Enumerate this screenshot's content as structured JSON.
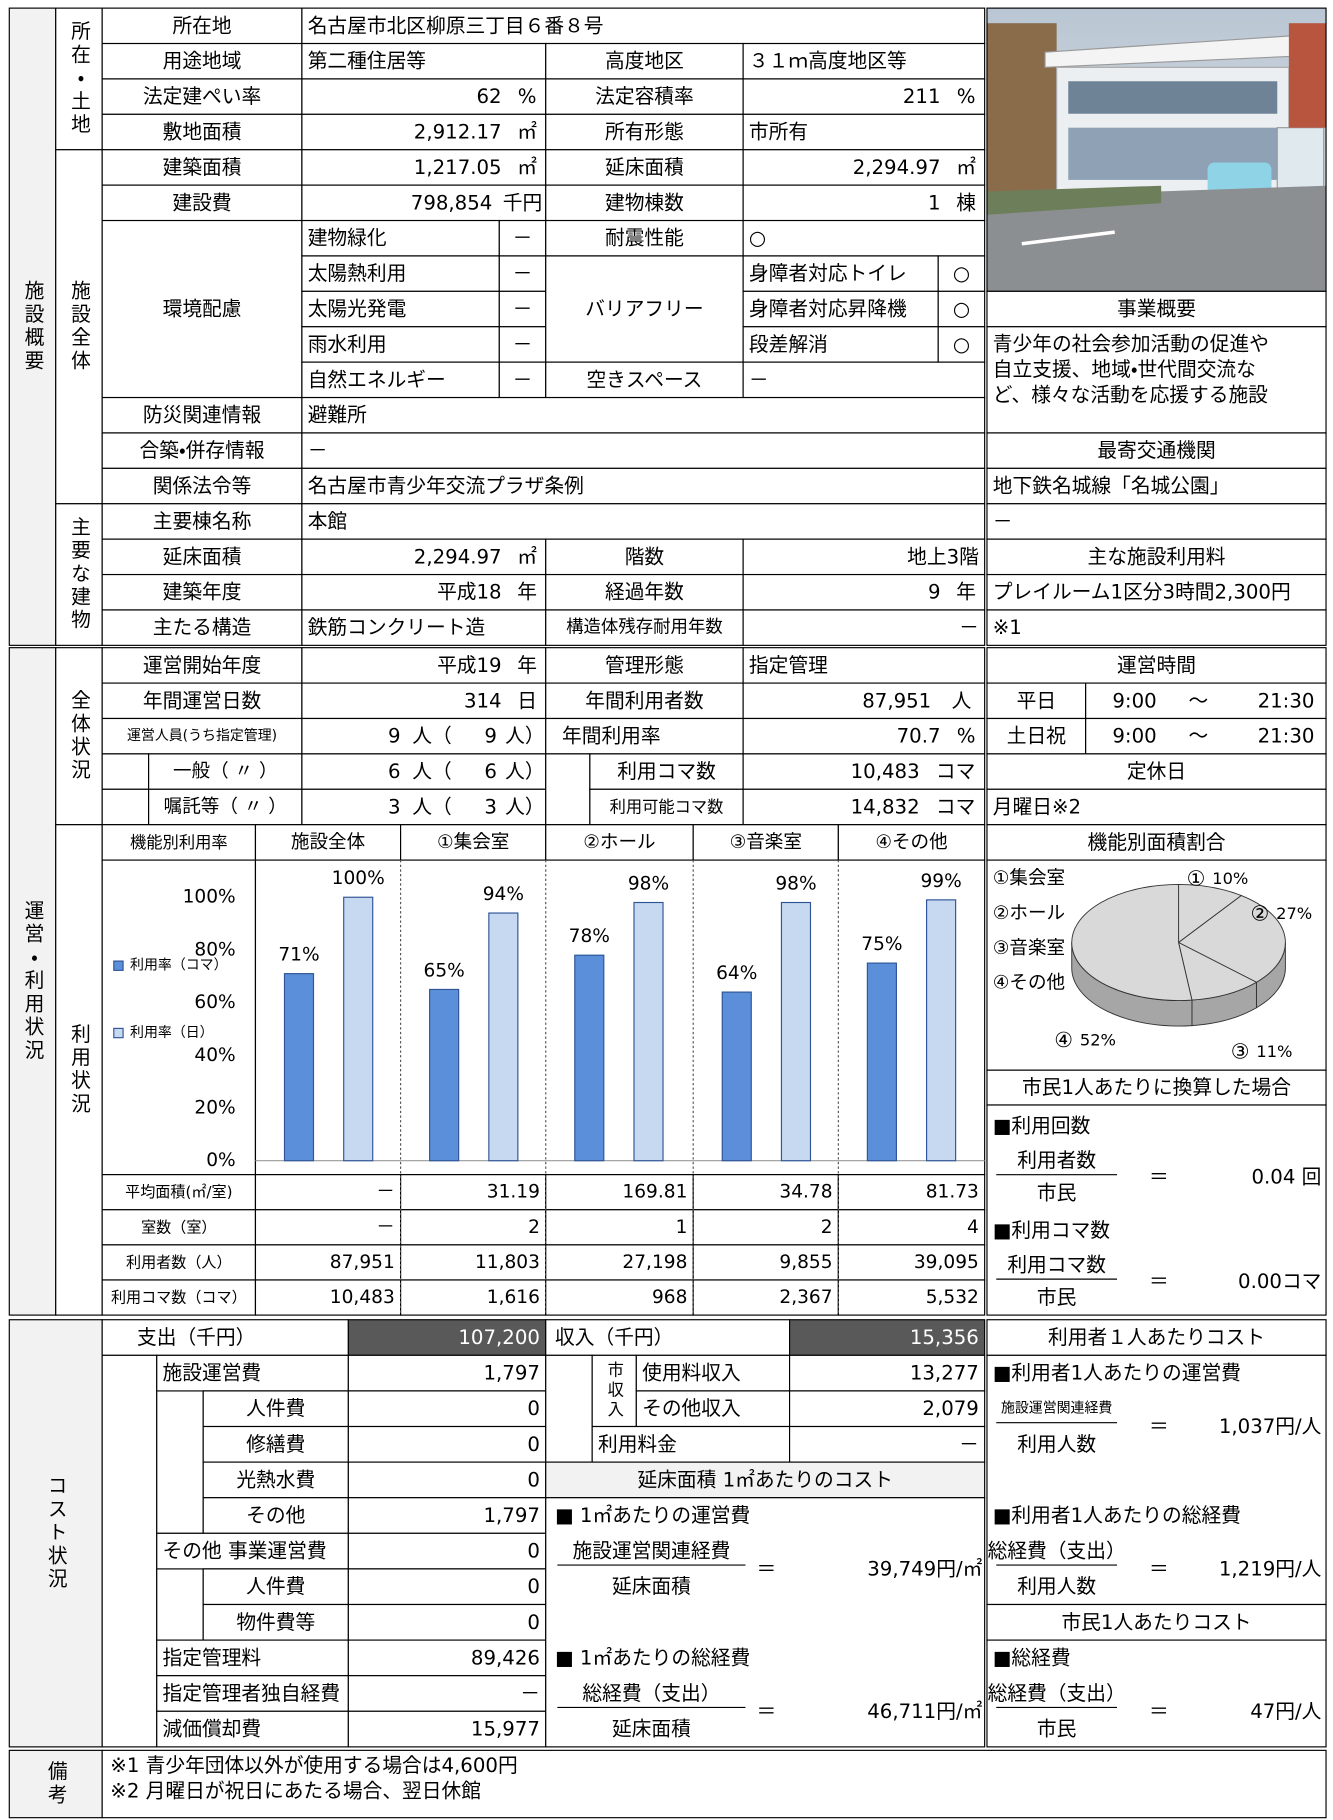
{
  "facility": {
    "section": "施設概要",
    "location_group": "所在・土地",
    "building_group": "施設全体",
    "main_group": "主要な建物",
    "address": {
      "label": "所在地",
      "value": "名古屋市北区柳原三丁目６番８号"
    },
    "zoning": {
      "label": "用途地域",
      "value": "第二種住居等"
    },
    "height_district": {
      "label": "高度地区",
      "value": "３１ｍ高度地区等"
    },
    "coverage_ratio": {
      "label": "法定建ぺい率",
      "value": "62",
      "unit": "%"
    },
    "floor_area_ratio": {
      "label": "法定容積率",
      "value": "211",
      "unit": "%"
    },
    "site_area": {
      "label": "敷地面積",
      "value": "2,912.17",
      "unit": "㎡"
    },
    "ownership": {
      "label": "所有形態",
      "value": "市所有"
    },
    "building_area": {
      "label": "建築面積",
      "value": "1,217.05",
      "unit": "㎡"
    },
    "total_floor_area": {
      "label": "延床面積",
      "value": "2,294.97",
      "unit": "㎡"
    },
    "construction_cost": {
      "label": "建設費",
      "value": "798,854",
      "unit": "千円"
    },
    "building_count": {
      "label": "建物棟数",
      "value": "1",
      "unit": "棟"
    },
    "environment": {
      "label": "環境配慮",
      "items": [
        {
          "name": "建物緑化",
          "mark": "－"
        },
        {
          "name": "太陽熱利用",
          "mark": "－"
        },
        {
          "name": "太陽光発電",
          "mark": "－"
        },
        {
          "name": "雨水利用",
          "mark": "－"
        },
        {
          "name": "自然エネルギー",
          "mark": "－"
        }
      ]
    },
    "seismic": {
      "label": "耐震性能",
      "value": "○"
    },
    "barrier_free": {
      "label": "バリアフリー",
      "items": [
        {
          "name": "身障者対応トイレ",
          "mark": "○"
        },
        {
          "name": "身障者対応昇降機",
          "mark": "○"
        },
        {
          "name": "段差解消",
          "mark": "○"
        }
      ]
    },
    "vacant_space": {
      "label": "空きスペース",
      "value": "－"
    },
    "disaster": {
      "label": "防災関連情報",
      "value": "避難所"
    },
    "combined": {
      "label": "合築・併存情報",
      "value": "－"
    },
    "laws": {
      "label": "関係法令等",
      "value": "名古屋市青少年交流プラザ条例"
    },
    "main_building": {
      "name": {
        "label": "主要棟名称",
        "value": "本館"
      },
      "floor_area": {
        "label": "延床面積",
        "value": "2,294.97",
        "unit": "㎡"
      },
      "floors": {
        "label": "階数",
        "value": "地上3階"
      },
      "year_built": {
        "label": "建築年度",
        "value": "平成18",
        "unit": "年"
      },
      "age": {
        "label": "経過年数",
        "value": "9",
        "unit": "年"
      },
      "structure": {
        "label": "主たる構造",
        "value": "鉄筋コンクリート造"
      },
      "remaining_life": {
        "label": "構造体残存耐用年数",
        "value": "－"
      }
    },
    "business": {
      "title": "事業概要",
      "lines": [
        "青少年の社会参加活動の促進や",
        "自立支援、地域・世代間交流な",
        "ど、様々な活動を応援する施設"
      ]
    },
    "transport": {
      "title": "最寄交通機関",
      "lines": [
        "地下鉄名城線「名城公園」",
        "－"
      ]
    },
    "fees": {
      "title": "主な施設利用料",
      "lines": [
        "プレイルーム1区分3時間2,300円",
        "※1"
      ]
    }
  },
  "operation": {
    "section": "運営・利用状況",
    "overall_group": "全体状況",
    "usage_group": "利用状況",
    "start_year": {
      "label": "運営開始年度",
      "value": "平成19",
      "unit": "年"
    },
    "management": {
      "label": "管理形態",
      "value": "指定管理"
    },
    "operating_days": {
      "label": "年間運営日数",
      "value": "314",
      "unit": "日"
    },
    "annual_users": {
      "label": "年間利用者数",
      "value": "87,951",
      "unit": "人"
    },
    "staff": [
      {
        "label": "運営人員(うち指定管理)",
        "total": "9",
        "designated": "9"
      },
      {
        "label": "一般（ 〃 ）",
        "total": "6",
        "designated": "6"
      },
      {
        "label": "嘱託等（ 〃 ）",
        "total": "3",
        "designated": "3"
      }
    ],
    "staff_unit_open": "人（",
    "staff_unit_close": "人）",
    "usage_rate": {
      "label": "年間利用率",
      "value": "70.7",
      "unit": "%"
    },
    "slots_used": {
      "label": "利用コマ数",
      "value": "10,483",
      "unit": "コマ"
    },
    "slots_available": {
      "label": "利用可能コマ数",
      "value": "14,832",
      "unit": "コマ"
    },
    "hours": {
      "title": "運営時間",
      "rows": [
        {
          "day": "平日",
          "open": "9:00",
          "sep": "～",
          "close": "21:30"
        },
        {
          "day": "土日祝",
          "open": "9:00",
          "sep": "～",
          "close": "21:30"
        }
      ]
    },
    "holiday": {
      "title": "定休日",
      "value": "月曜日※2"
    }
  },
  "usage": {
    "header": "機能別利用率",
    "chart_data": {
      "type": "bar",
      "categories": [
        "施設全体",
        "①集会室",
        "②ホール",
        "③音楽室",
        "④その他"
      ],
      "ylim": [
        0,
        100
      ],
      "yticks": [
        {
          "value": 0,
          "label": "0%"
        },
        {
          "value": 20,
          "label": "20%"
        },
        {
          "value": 40,
          "label": "40%"
        },
        {
          "value": 60,
          "label": "60%"
        },
        {
          "value": 80,
          "label": "80%"
        },
        {
          "value": 100,
          "label": "100%"
        }
      ],
      "series": [
        {
          "name": "利用率（コマ）",
          "color": "#5b8fd9",
          "values": [
            71,
            65,
            78,
            64,
            75
          ],
          "value_labels": [
            "71%",
            "65%",
            "78%",
            "64%",
            "75%"
          ]
        },
        {
          "name": "利用率（日）",
          "color": "#c6d9f1",
          "values": [
            100,
            94,
            98,
            98,
            99
          ],
          "value_labels": [
            "100%",
            "94%",
            "98%",
            "98%",
            "99%"
          ]
        }
      ]
    },
    "rows": [
      {
        "label": "平均面積(㎡/室)",
        "values": [
          "－",
          "31.19",
          "169.81",
          "34.78",
          "81.73"
        ]
      },
      {
        "label": "室数（室）",
        "values": [
          "－",
          "2",
          "1",
          "2",
          "4"
        ]
      },
      {
        "label": "利用者数（人）",
        "values": [
          "87,951",
          "11,803",
          "27,198",
          "9,855",
          "39,095"
        ]
      },
      {
        "label": "利用コマ数（コマ）",
        "values": [
          "10,483",
          "1,616",
          "968",
          "2,367",
          "5,532"
        ]
      }
    ]
  },
  "area_share": {
    "title": "機能別面積割合",
    "chart_data": {
      "type": "pie",
      "categories": [
        "①集会室",
        "②ホール",
        "③音楽室",
        "④その他"
      ],
      "markers": [
        "①",
        "②",
        "③",
        "④"
      ],
      "values": [
        10,
        27,
        11,
        52
      ],
      "value_labels": [
        "10%",
        "27%",
        "11%",
        "52%"
      ],
      "color": "#d9d9d9"
    }
  },
  "per_citizen_usage": {
    "title": "市民1人あたりに換算した場合",
    "items": [
      {
        "heading": "■利用回数",
        "numerator": "利用者数",
        "denominator": "市民",
        "value": "0.04 回"
      },
      {
        "heading": "■利用コマ数",
        "numerator": "利用コマ数",
        "denominator": "市民",
        "value": "0.00コマ"
      }
    ]
  },
  "equals": "＝",
  "cost": {
    "section": "コスト状況",
    "expenses": {
      "label": "支出（千円）",
      "total": "107,200",
      "items": [
        {
          "label": "施設運営費",
          "value": "1,797"
        },
        {
          "label": "人件費",
          "value": "0"
        },
        {
          "label": "修繕費",
          "value": "0"
        },
        {
          "label": "光熱水費",
          "value": "0"
        },
        {
          "label": "その他",
          "value": "1,797"
        },
        {
          "label": "その他 事業運営費",
          "value": "0"
        },
        {
          "label": "人件費",
          "value": "0"
        },
        {
          "label": "物件費等",
          "value": "0"
        },
        {
          "label": "指定管理料",
          "value": "89,426"
        },
        {
          "label": "指定管理者独自経費",
          "value": "－"
        },
        {
          "label": "減価償却費",
          "value": "15,977"
        }
      ]
    },
    "revenue": {
      "label": "収入（千円）",
      "total": "15,356",
      "city_label": "市収入",
      "items": [
        {
          "label": "使用料収入",
          "value": "13,277"
        },
        {
          "label": "その他収入",
          "value": "2,079"
        },
        {
          "label": "利用料金",
          "value": "－"
        }
      ]
    },
    "per_area": {
      "title": "延床面積 1㎡あたりのコスト",
      "items": [
        {
          "heading": "■ 1㎡あたりの運営費",
          "numerator": "施設運営関連経費",
          "denominator": "延床面積",
          "value": "39,749円/㎡"
        },
        {
          "heading": "■ 1㎡あたりの総経費",
          "numerator": "総経費（支出）",
          "denominator": "延床面積",
          "value": "46,711円/㎡"
        }
      ]
    },
    "per_user": {
      "title": "利用者１人あたりコスト",
      "items": [
        {
          "heading": "■利用者1人あたりの運営費",
          "numerator": "施設運営関連経費",
          "denominator": "利用人数",
          "value": "1,037円/人"
        },
        {
          "heading": "■利用者1人あたりの総経費",
          "numerator": "総経費（支出）",
          "denominator": "利用人数",
          "value": "1,219円/人"
        }
      ]
    },
    "per_citizen": {
      "title": "市民1人あたりコスト",
      "items": [
        {
          "heading": "■総経費",
          "numerator": "総経費（支出）",
          "denominator": "市民",
          "value": "47円/人"
        }
      ]
    }
  },
  "remarks": {
    "label": "備考",
    "lines": [
      "※1 青少年団体以外が使用する場合は4,600円",
      "※2 月曜日が祝日にあたる場合、翌日休館"
    ]
  }
}
